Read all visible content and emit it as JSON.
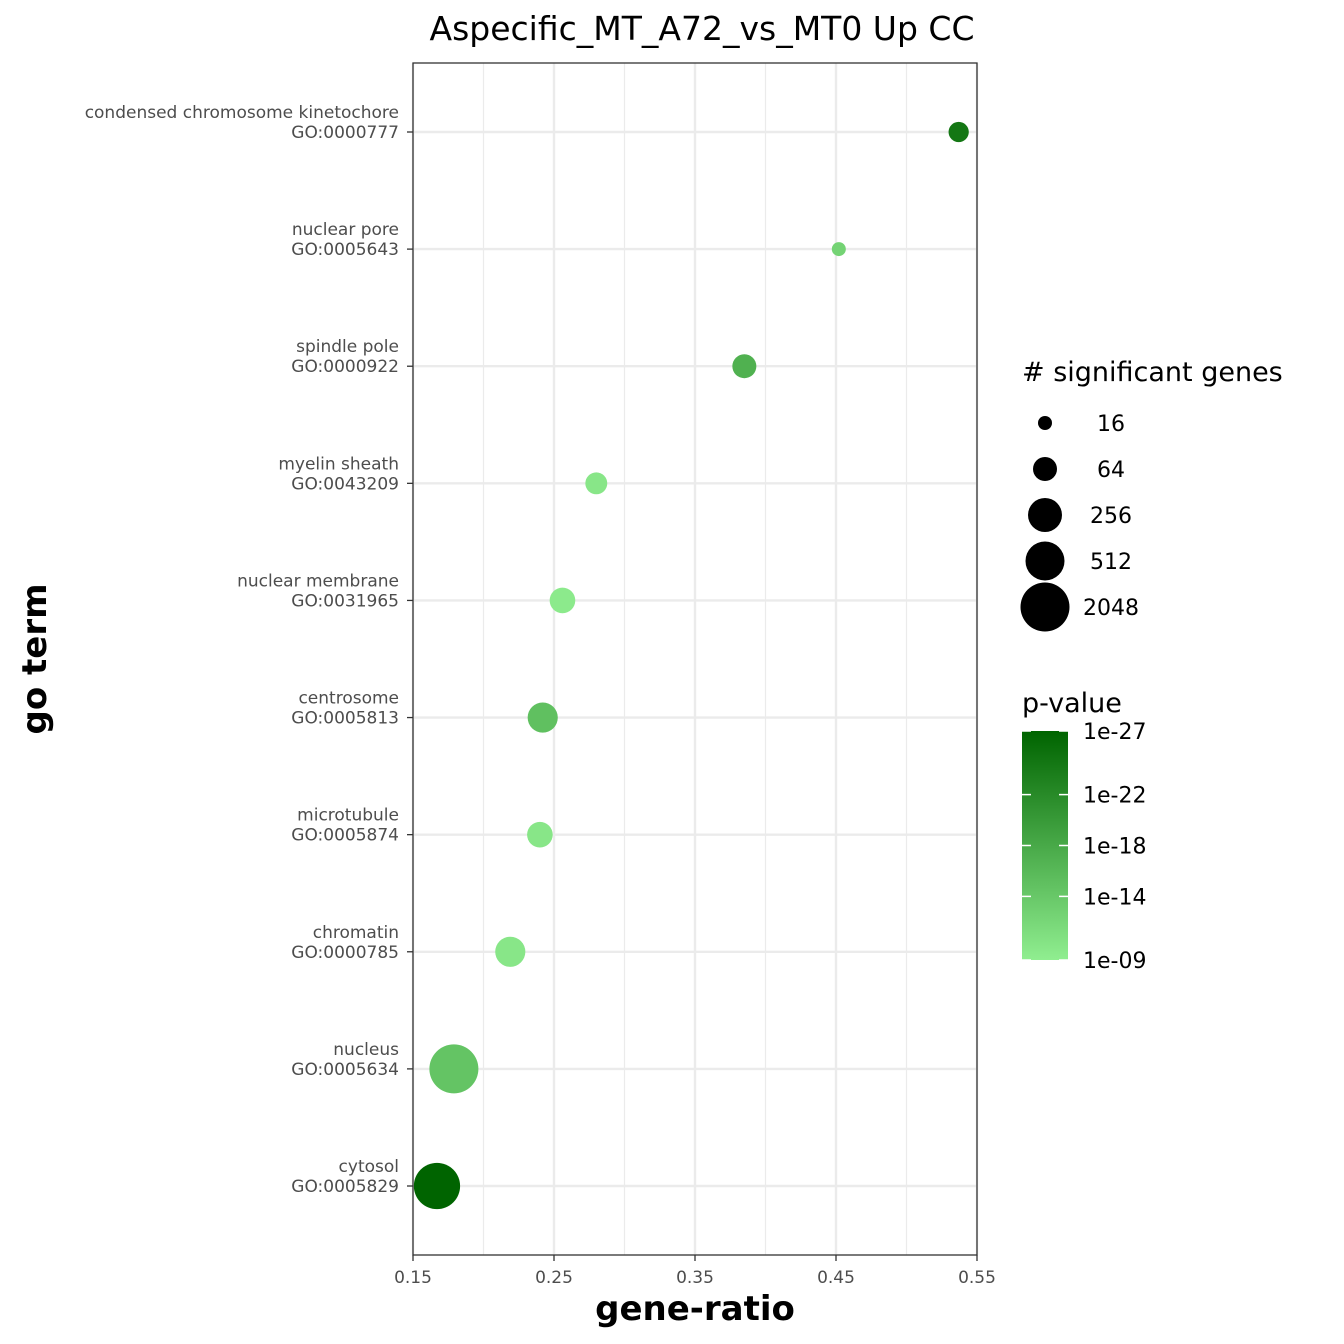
{
  "chart_data": {
    "type": "scatter",
    "title": "Aspecific_MT_A72_vs_MT0 Up CC",
    "xlabel": "gene-ratio",
    "ylabel": "go term",
    "xlim": [
      0.15,
      0.55
    ],
    "xticks": [
      "0.15",
      "0.25",
      "0.35",
      "0.45",
      "0.55"
    ],
    "xtick_values": [
      0.15,
      0.25,
      0.35,
      0.45,
      0.55
    ],
    "grid": true,
    "legend_position": "right",
    "color_low": "#90EE90",
    "color_high": "#006400",
    "points": [
      {
        "term": "condensed chromosome kinetochore",
        "go": "GO:0000777",
        "gene_ratio": 0.537,
        "genes": 38,
        "log10_p": -24.5
      },
      {
        "term": "nuclear pore",
        "go": "GO:0005643",
        "gene_ratio": 0.452,
        "genes": 16,
        "log10_p": -12.5
      },
      {
        "term": "spindle pole",
        "go": "GO:0000922",
        "gene_ratio": 0.385,
        "genes": 64,
        "log10_p": -17
      },
      {
        "term": "myelin sheath",
        "go": "GO:0043209",
        "gene_ratio": 0.28,
        "genes": 48,
        "log10_p": -10
      },
      {
        "term": "nuclear membrane",
        "go": "GO:0031965",
        "gene_ratio": 0.256,
        "genes": 80,
        "log10_p": -9.5
      },
      {
        "term": "centrosome",
        "go": "GO:0005813",
        "gene_ratio": 0.242,
        "genes": 150,
        "log10_p": -15
      },
      {
        "term": "microtubule",
        "go": "GO:0005874",
        "gene_ratio": 0.24,
        "genes": 80,
        "log10_p": -10
      },
      {
        "term": "chromatin",
        "go": "GO:0000785",
        "gene_ratio": 0.219,
        "genes": 150,
        "log10_p": -10
      },
      {
        "term": "nucleus",
        "go": "GO:0005634",
        "gene_ratio": 0.179,
        "genes": 2048,
        "log10_p": -14.5
      },
      {
        "term": "cytosol",
        "go": "GO:0005829",
        "gene_ratio": 0.167,
        "genes": 1400,
        "log10_p": -27
      }
    ],
    "size_legend": {
      "title": "# significant  genes",
      "entries": [
        {
          "label": "16",
          "value": 16
        },
        {
          "label": "64",
          "value": 64
        },
        {
          "label": "256",
          "value": 256
        },
        {
          "label": "512",
          "value": 512
        },
        {
          "label": "2048",
          "value": 2048
        }
      ]
    },
    "color_legend": {
      "title": "p-value",
      "entries": [
        {
          "label": "1e-27",
          "log10_p": -27
        },
        {
          "label": "1e-22",
          "log10_p": -22
        },
        {
          "label": "1e-18",
          "log10_p": -18
        },
        {
          "label": "1e-14",
          "log10_p": -14
        },
        {
          "label": "1e-09",
          "log10_p": -9
        }
      ]
    }
  }
}
